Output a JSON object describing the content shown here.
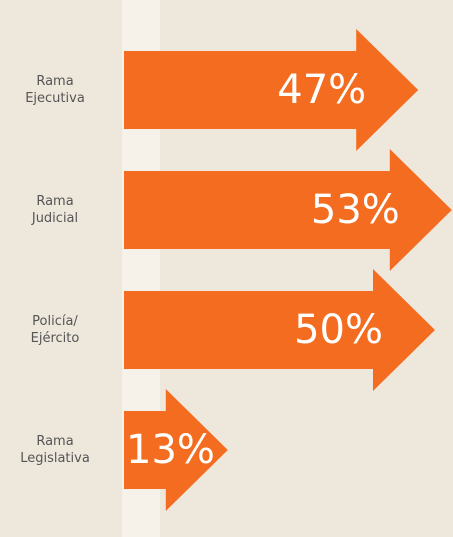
{
  "chart_data": {
    "type": "bar",
    "orientation": "horizontal",
    "categories": [
      "Rama\nEjecutiva",
      "Rama\nJudicial",
      "Policía/\nEjército",
      "Rama\nLegislativa"
    ],
    "values": [
      47,
      53,
      50,
      13
    ],
    "value_labels": [
      "47%",
      "53%",
      "50%",
      "13%"
    ],
    "color": "#f36c1f"
  }
}
